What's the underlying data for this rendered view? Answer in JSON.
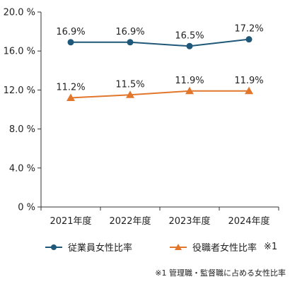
{
  "chart_data": {
    "type": "line",
    "categories": [
      "2021年度",
      "2022年度",
      "2023年度",
      "2024年度"
    ],
    "series": [
      {
        "name": "従業員女性比率",
        "values": [
          16.9,
          16.9,
          16.5,
          17.2
        ],
        "labels": [
          "16.9%",
          "16.9%",
          "16.5%",
          "17.2%"
        ],
        "color": "#1f5878",
        "marker": "circle"
      },
      {
        "name": "役職者女性比率",
        "values": [
          11.2,
          11.5,
          11.9,
          11.9
        ],
        "labels": [
          "11.2%",
          "11.5%",
          "11.9%",
          "11.9%"
        ],
        "color": "#e2772b",
        "marker": "triangle"
      }
    ],
    "ylim": [
      0,
      20
    ],
    "yticks": [
      0,
      4,
      8,
      12,
      16,
      20
    ],
    "ytick_labels": [
      "0 %",
      "4.0 %",
      "8.0 %",
      "12.0 %",
      "16.0 %",
      "20.0 %"
    ],
    "grid": false,
    "legend_position": "bottom",
    "legend_suffix": "※1",
    "footnote": "※1 管理職・監督職に占める女性比率"
  }
}
